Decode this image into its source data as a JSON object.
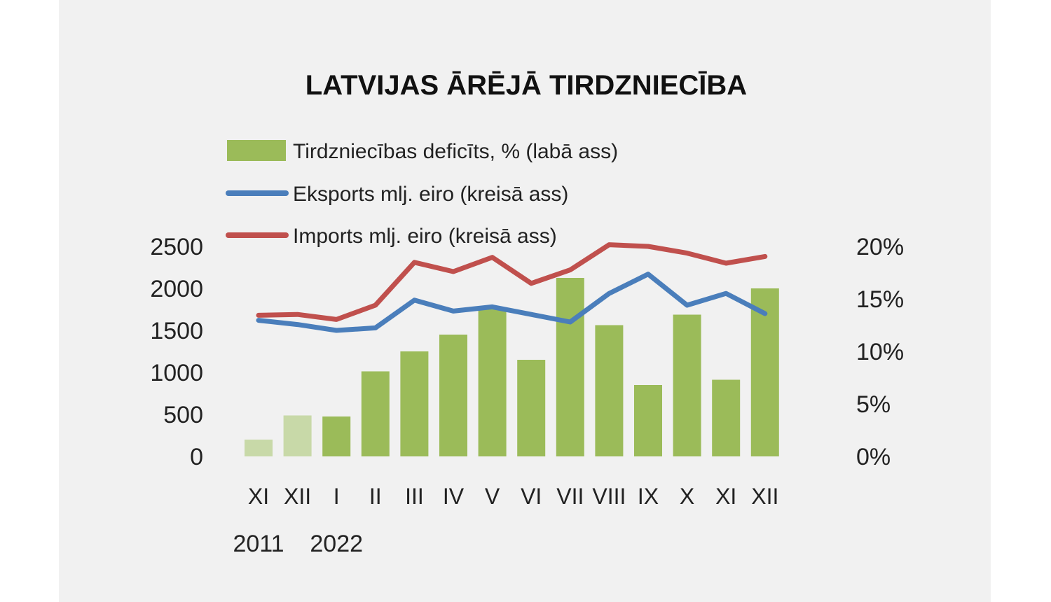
{
  "chart_data": {
    "type": "bar+line",
    "title": "LATVIJAS ĀRĒJĀ TIRDZNIECĪBA",
    "categories": [
      "XI",
      "XII",
      "I",
      "II",
      "III",
      "IV",
      "V",
      "VI",
      "VII",
      "VIII",
      "IX",
      "X",
      "XI",
      "XII"
    ],
    "year_labels": [
      {
        "index": 0,
        "text": "2011"
      },
      {
        "index": 2,
        "text": "2022"
      }
    ],
    "left_axis": {
      "ticks": [
        "2500",
        "2000",
        "1500",
        "1000",
        "500",
        "0"
      ],
      "ylim": [
        0,
        2500
      ]
    },
    "right_axis": {
      "ticks": [
        "20%",
        "15%",
        "10%",
        "5%",
        "0%"
      ],
      "ylim": [
        0,
        20
      ]
    },
    "bars": {
      "name": "Tirdzniecības deficīts, % (labā ass)",
      "axis": "right",
      "color": "#9bbb59",
      "faded_color": "#c8d9a8",
      "faded_indices": [
        0,
        1
      ],
      "values": [
        1.6,
        3.9,
        3.8,
        8.1,
        10.0,
        11.6,
        14.2,
        9.2,
        17.0,
        12.5,
        6.8,
        13.5,
        7.3,
        16.0
      ]
    },
    "series": [
      {
        "name": "Eksports mlj. eiro (kreisā ass)",
        "axis": "left",
        "color": "#4a7ebb",
        "values": [
          1620,
          1570,
          1500,
          1530,
          1860,
          1730,
          1780,
          1690,
          1600,
          1940,
          2170,
          1800,
          1940,
          1700
        ]
      },
      {
        "name": "Imports mlj. eiro (kreisā ass)",
        "axis": "left",
        "color": "#c0504d",
        "values": [
          1680,
          1690,
          1630,
          1800,
          2310,
          2200,
          2370,
          2060,
          2220,
          2520,
          2500,
          2420,
          2300,
          2380
        ]
      }
    ]
  }
}
